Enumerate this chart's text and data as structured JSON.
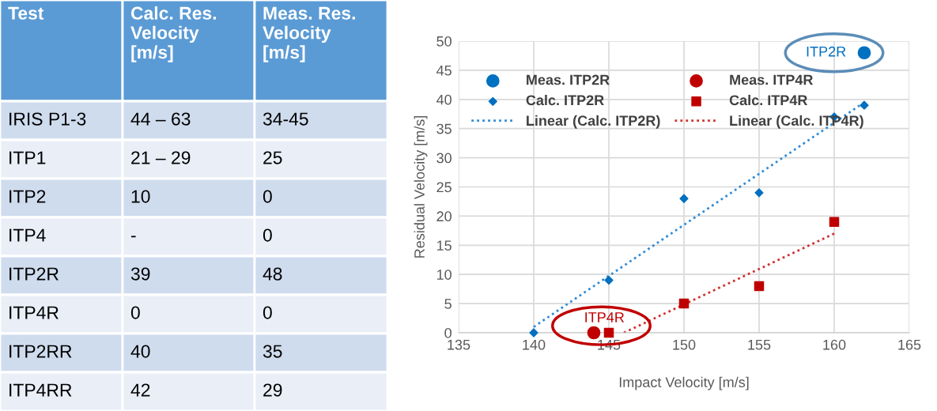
{
  "chart_data": [
    {
      "type": "other",
      "annotations": [
        "Test",
        "Calc. Res. Velocity [m/s]",
        "Meas. Res. Velocity [m/s]",
        "IRIS P1-3",
        "44 – 63",
        "34-45",
        "ITP1",
        "21 – 29",
        "25",
        "ITP2",
        "10",
        "0",
        "ITP4",
        "-",
        "0",
        "ITP2R",
        "39",
        "48",
        "ITP4R",
        "0",
        "0",
        "ITP2RR",
        "40",
        "35",
        "ITP4RR",
        "42",
        "29"
      ]
    },
    {
      "type": "scatter",
      "xlabel": "Impact Velocity [m/s]",
      "ylabel": "Residual Velocity [m/s]",
      "xlim": [
        135,
        165
      ],
      "xticks": [
        135,
        140,
        145,
        150,
        155,
        160,
        165
      ],
      "ylim": [
        0,
        50
      ],
      "yticks": [
        0,
        5,
        10,
        15,
        20,
        25,
        30,
        35,
        40,
        45,
        50
      ],
      "grid": true,
      "legend": "top left",
      "series": [
        {
          "name": "Meas. ITP2R",
          "type": "scatter",
          "marker": "circle",
          "color": "#0070c0",
          "x": [
            162
          ],
          "values": [
            48
          ]
        },
        {
          "name": "Calc. ITP2R",
          "type": "scatter",
          "marker": "diamond",
          "color": "#0070c0",
          "x": [
            140,
            145,
            150,
            155,
            160,
            162
          ],
          "values": [
            0,
            9,
            23,
            24,
            37,
            39
          ]
        },
        {
          "name": "Linear (Calc. ITP2R)",
          "type": "line",
          "line_style": "dotted",
          "marker": "none",
          "color": "#2e8bd6",
          "x": [
            140,
            162
          ],
          "values": [
            1,
            39.5
          ]
        },
        {
          "name": "Meas. ITP4R",
          "type": "scatter",
          "marker": "circle",
          "color": "#c00000",
          "x": [
            144
          ],
          "values": [
            0
          ]
        },
        {
          "name": "Calc. ITP4R",
          "type": "scatter",
          "marker": "square",
          "color": "#c00000",
          "x": [
            145,
            150,
            155,
            160
          ],
          "values": [
            0,
            5,
            8,
            19
          ]
        },
        {
          "name": "Linear (Calc. ITP4R)",
          "type": "line",
          "line_style": "dotted",
          "marker": "none",
          "color": "#d03030",
          "x": [
            146,
            160
          ],
          "values": [
            0,
            17
          ]
        }
      ],
      "annotations": [
        {
          "text": "ITP2R",
          "x": 162,
          "y": 48
        },
        {
          "text": "ITP4R",
          "x": 144,
          "y": 0
        }
      ]
    }
  ]
}
